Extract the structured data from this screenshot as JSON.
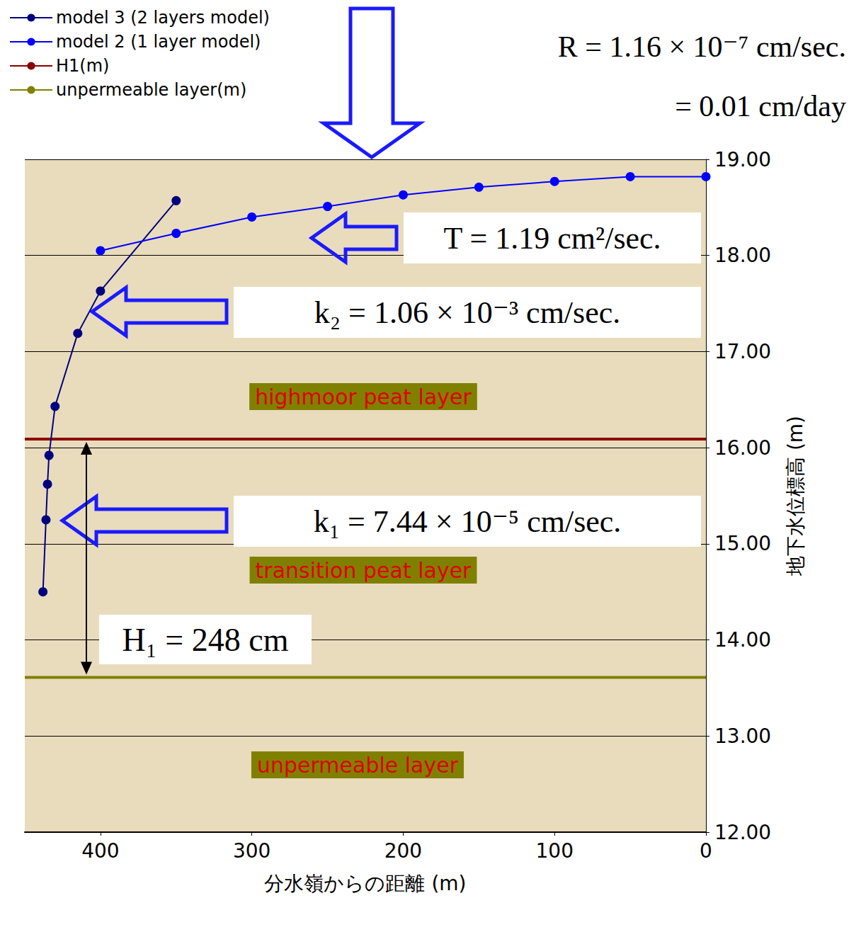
{
  "chart_data": {
    "type": "line",
    "x_label": "分水嶺からの距離 (m)",
    "y_label": "地下水位標高 (m)",
    "xlim": [
      450,
      0
    ],
    "xticks": [
      400,
      300,
      200,
      100,
      0
    ],
    "ylim": [
      12,
      19
    ],
    "yticks": [
      {
        "value": 12,
        "label": "12.00"
      },
      {
        "value": 13,
        "label": "13.00"
      },
      {
        "value": 14,
        "label": "14.00"
      },
      {
        "value": 15,
        "label": "15.00"
      },
      {
        "value": 16,
        "label": "16.00"
      },
      {
        "value": 17,
        "label": "17.00"
      },
      {
        "value": 18,
        "label": "18.00"
      },
      {
        "value": 19,
        "label": "19.00"
      }
    ],
    "grid": true,
    "legend": "upper left",
    "series": [
      {
        "name": "model 3 (2 layers model)",
        "color": "#000080",
        "marker": "circle",
        "x": [
          350,
          400,
          415,
          430,
          434,
          435,
          436,
          438
        ],
        "values": [
          18.57,
          17.63,
          17.19,
          16.43,
          15.92,
          15.62,
          15.25,
          14.5
        ]
      },
      {
        "name": "model 2 (1 layer model)",
        "color": "#0000ff",
        "marker": "circle",
        "x": [
          400,
          350,
          300,
          250,
          200,
          150,
          100,
          50,
          0
        ],
        "values": [
          18.05,
          18.23,
          18.4,
          18.51,
          18.63,
          18.71,
          18.77,
          18.82,
          18.82
        ]
      },
      {
        "name": "H1(m)",
        "color": "#8b0000",
        "marker": "none",
        "x": [
          450,
          0
        ],
        "values": [
          16.09,
          16.09
        ]
      },
      {
        "name": "unpermeable layer(m)",
        "color": "#808000",
        "marker": "none",
        "x": [
          450,
          0
        ],
        "values": [
          13.61,
          13.61
        ]
      }
    ],
    "annotations": [
      "R = 1.16 × 10⁻⁷ cm/sec.",
      "= 0.01 cm/day",
      "T = 1.19 cm²/sec.",
      "k₂ = 1.06 × 10⁻³ cm/sec.",
      "k₁ = 7.44 × 10⁻⁵ cm/sec.",
      "H₁ = 248 cm"
    ],
    "layer_labels": [
      "highmoor peat layer",
      "transition peat layer",
      "unpermeable layer"
    ]
  }
}
